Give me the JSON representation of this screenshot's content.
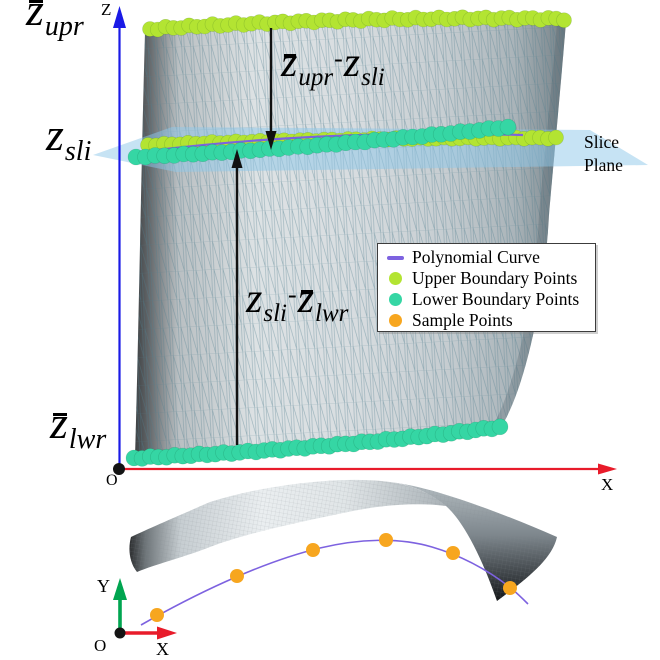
{
  "axes": {
    "top": {
      "vertical": "Z",
      "horizontal": "X",
      "origin": "O"
    },
    "bottom": {
      "vertical": "Y",
      "horizontal": "X",
      "origin": "O"
    }
  },
  "labels": {
    "z_upr": {
      "base": "z",
      "sub": "upr"
    },
    "z_sli": {
      "base": "z",
      "sub": "sli"
    },
    "z_lwr": {
      "base": "z",
      "sub": "lwr"
    },
    "gap_upper": {
      "a_base": "z",
      "a_sub": "upr",
      "minus": "-",
      "b_base": "z",
      "b_sub": "sli"
    },
    "gap_lower": {
      "a_base": "z",
      "a_sub": "sli",
      "minus": "-",
      "b_base": "z",
      "b_sub": "lwr"
    },
    "slice_plane": "Slice Plane"
  },
  "legend": {
    "items": [
      {
        "label": "Polynomial Curve",
        "marker": "line"
      },
      {
        "label": "Upper Boundary Points",
        "marker": "circle"
      },
      {
        "label": "Lower Boundary Points",
        "marker": "circle"
      },
      {
        "label": "Sample Points",
        "marker": "circle"
      }
    ]
  },
  "colors": {
    "polynomial_curve": "#7d62e0",
    "upper_boundary": "#b3e432",
    "lower_boundary": "#35d6a4",
    "sample_points": "#f7a61f",
    "slice_plane": "#8ec7ea",
    "z_axis": "#1a1ae6",
    "x_axis": "#e81b2a",
    "y_axis": "#00a550",
    "arrow_black": "#111111",
    "mesh_line": "#4f7d8e"
  }
}
